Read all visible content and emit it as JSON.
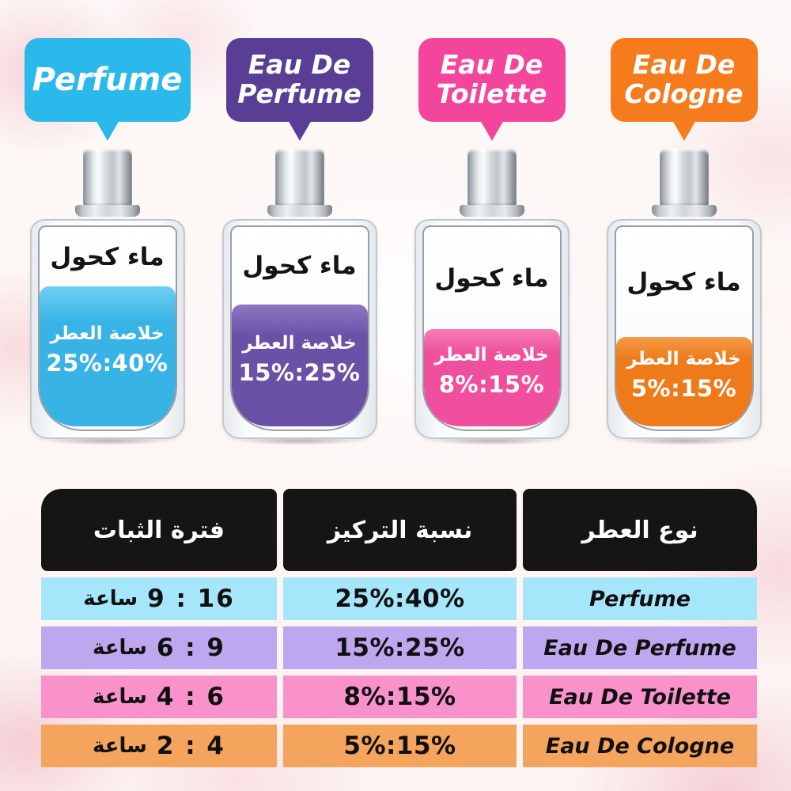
{
  "bottle": {
    "title": "ماء كحول",
    "essence_label": "خلاصة العطر"
  },
  "columns": [
    {
      "id": "perfume",
      "label_line1": "Perfume",
      "bubble_color": "#2bb9ec",
      "liquid_color": "#38b3e5",
      "liquid_color_top": "#6fd0f2",
      "fill_percent": 69,
      "concentration": "25%:40%"
    },
    {
      "id": "eau-de-perfume",
      "label_line1": "Eau De",
      "label_line2": "Perfume",
      "bubble_color": "#5a3e96",
      "liquid_color": "#6a51a6",
      "liquid_color_top": "#9077c4",
      "fill_percent": 60,
      "concentration": "15%:25%"
    },
    {
      "id": "eau-de-toilette",
      "label_line1": "Eau De",
      "label_line2": "Toilette",
      "bubble_color": "#f4459d",
      "liquid_color": "#ef4f9c",
      "liquid_color_top": "#f67cb4",
      "fill_percent": 48,
      "concentration": "8%:15%"
    },
    {
      "id": "eau-de-cologne",
      "label_line1": "Eau De",
      "label_line2": "Cologne",
      "bubble_color": "#f67b1d",
      "liquid_color": "#ee7a19",
      "liquid_color_top": "#f49a4a",
      "fill_percent": 44,
      "concentration": "5%:15%"
    }
  ],
  "table": {
    "headers": {
      "type": "نوع العطر",
      "concentration": "نسبة التركيز",
      "duration": "فترة الثبات"
    },
    "rows": [
      {
        "type": "Perfume",
        "concentration": "25%:40%",
        "hours_range": "9 : 16",
        "hours_unit": "ساعة",
        "row_color": "#a6e6fb"
      },
      {
        "type": "Eau De Perfume",
        "concentration": "15%:25%",
        "hours_range": "6 : 9",
        "hours_unit": "ساعة",
        "row_color": "#bfa7ef"
      },
      {
        "type": "Eau De Toilette",
        "concentration": "8%:15%",
        "hours_range": "4 : 6",
        "hours_unit": "ساعة",
        "row_color": "#f992cb"
      },
      {
        "type": "Eau De Cologne",
        "concentration": "5%:15%",
        "hours_range": "2 : 4",
        "hours_unit": "ساعة",
        "row_color": "#f4a45d"
      }
    ]
  }
}
